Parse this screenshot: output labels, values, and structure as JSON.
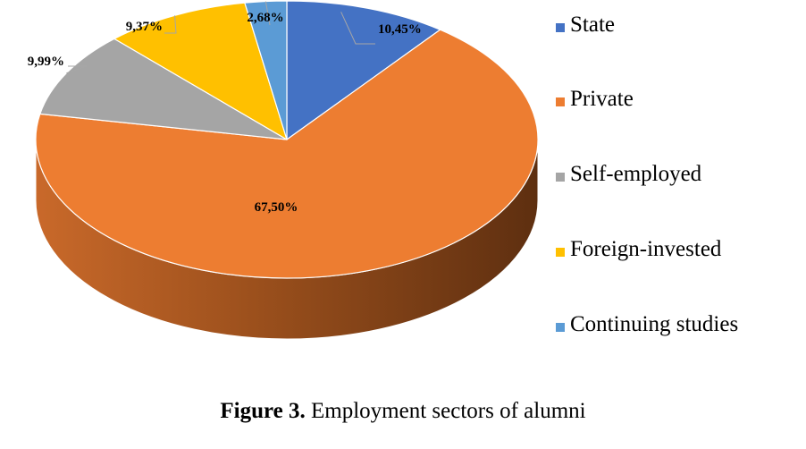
{
  "chart_data": {
    "type": "pie",
    "style": "3d",
    "categories": [
      "State",
      "Private",
      "Self-employed",
      "Foreign-invested",
      "Continuing studies"
    ],
    "values": [
      10.45,
      67.5,
      9.99,
      9.37,
      2.68
    ],
    "data_labels": [
      "10,45%",
      "67,50%",
      "9,99%",
      "9,37%",
      "2,68%"
    ],
    "colors": [
      "#4472C4",
      "#ED7D31",
      "#A5A5A5",
      "#FFC000",
      "#5B9BD5"
    ],
    "legend_position": "right"
  },
  "caption": {
    "prefix": "Figure 3.",
    "text": " Employment sectors of alumni"
  }
}
